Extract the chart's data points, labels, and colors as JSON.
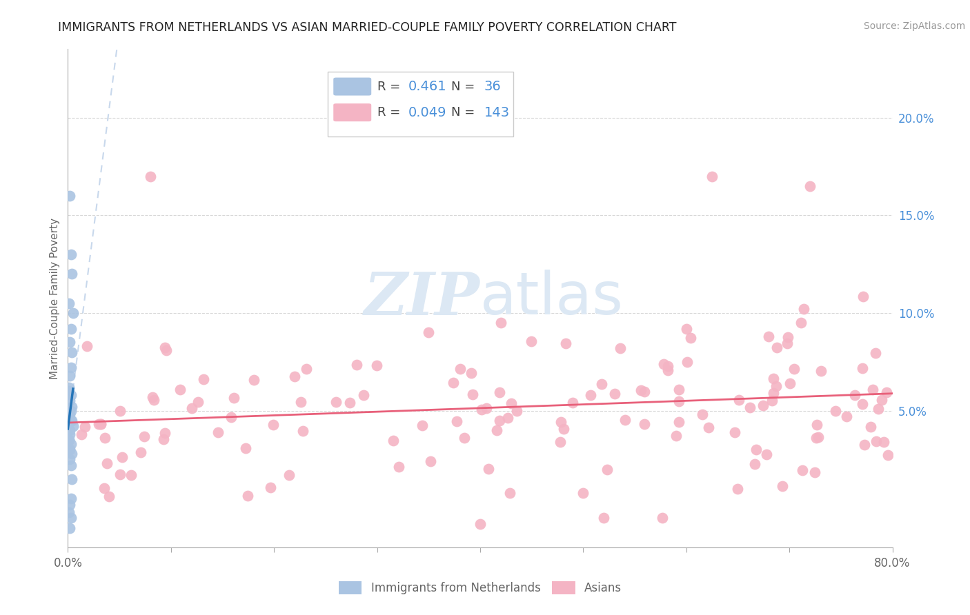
{
  "title": "IMMIGRANTS FROM NETHERLANDS VS ASIAN MARRIED-COUPLE FAMILY POVERTY CORRELATION CHART",
  "source": "Source: ZipAtlas.com",
  "ylabel": "Married-Couple Family Poverty",
  "xlim": [
    0.0,
    0.8
  ],
  "ylim": [
    -0.02,
    0.235
  ],
  "blue_R": 0.461,
  "blue_N": 36,
  "pink_R": 0.049,
  "pink_N": 143,
  "blue_color": "#aac4e2",
  "blue_line_color": "#2575b8",
  "pink_color": "#f4b4c4",
  "pink_line_color": "#e8607a",
  "dashed_line_color": "#c8d8ec",
  "grid_color": "#d8d8d8",
  "tick_label_color": "#4a90d9",
  "watermark_color": "#dce8f4"
}
